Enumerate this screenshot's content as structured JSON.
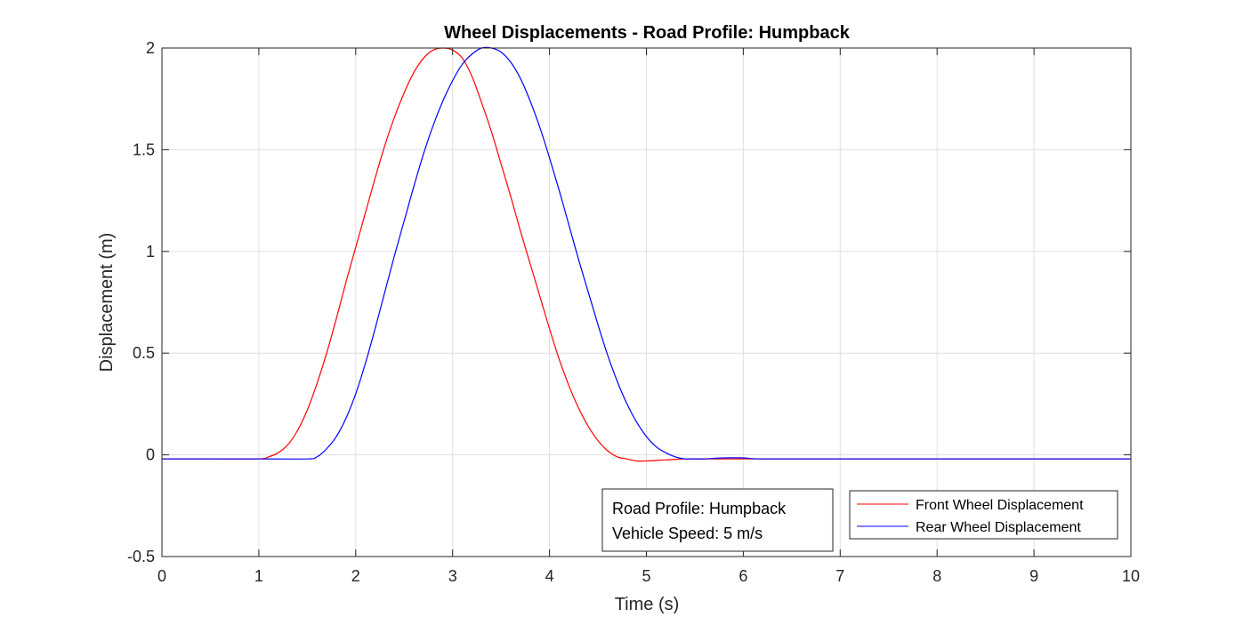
{
  "chart_data": {
    "type": "line",
    "title": "Wheel Displacements - Road Profile: Humpback",
    "xlabel": "Time (s)",
    "ylabel": "Displacement (m)",
    "xlim": [
      0,
      10
    ],
    "ylim": [
      -0.5,
      2
    ],
    "xticks": [
      0,
      1,
      2,
      3,
      4,
      5,
      6,
      7,
      8,
      9,
      10
    ],
    "xtick_labels": [
      "0",
      "1",
      "2",
      "3",
      "4",
      "5",
      "6",
      "7",
      "8",
      "9",
      "10"
    ],
    "yticks": [
      -0.5,
      0,
      0.5,
      1,
      1.5,
      2
    ],
    "ytick_labels": [
      "-0.5",
      "0",
      "0.5",
      "1",
      "1.5",
      "2"
    ],
    "grid": true,
    "legend_position": "bottom-right",
    "annotation": [
      "Road Profile: Humpback",
      "Vehicle Speed: 5 m/s"
    ],
    "series": [
      {
        "name": "Front Wheel Displacement",
        "color": "#ff0000",
        "x": [
          0,
          0.5,
          1.0,
          1.1,
          1.2,
          1.3,
          1.4,
          1.5,
          1.6,
          1.7,
          1.8,
          1.9,
          2.0,
          2.1,
          2.2,
          2.3,
          2.4,
          2.5,
          2.6,
          2.7,
          2.8,
          2.9,
          3.0,
          3.1,
          3.2,
          3.3,
          3.4,
          3.5,
          3.6,
          3.7,
          3.8,
          3.9,
          4.0,
          4.1,
          4.2,
          4.3,
          4.4,
          4.5,
          4.6,
          4.7,
          4.8,
          4.9,
          5.0,
          5.2,
          5.4,
          5.6,
          5.8,
          6.0,
          7.0,
          8.0,
          9.0,
          10.0
        ],
        "y": [
          -0.02,
          -0.02,
          -0.02,
          -0.01,
          0.01,
          0.05,
          0.12,
          0.22,
          0.35,
          0.5,
          0.67,
          0.85,
          1.02,
          1.19,
          1.36,
          1.52,
          1.66,
          1.78,
          1.88,
          1.95,
          1.99,
          2.0,
          1.99,
          1.95,
          1.86,
          1.73,
          1.59,
          1.43,
          1.27,
          1.1,
          0.94,
          0.78,
          0.62,
          0.47,
          0.34,
          0.23,
          0.14,
          0.07,
          0.02,
          -0.01,
          -0.02,
          -0.03,
          -0.03,
          -0.025,
          -0.02,
          -0.02,
          -0.02,
          -0.02,
          -0.02,
          -0.02,
          -0.02,
          -0.02
        ]
      },
      {
        "name": "Rear Wheel Displacement",
        "color": "#0000ff",
        "x": [
          0,
          0.5,
          1.0,
          1.5,
          1.6,
          1.7,
          1.8,
          1.9,
          2.0,
          2.1,
          2.2,
          2.3,
          2.4,
          2.5,
          2.6,
          2.7,
          2.8,
          2.9,
          3.0,
          3.1,
          3.2,
          3.3,
          3.4,
          3.5,
          3.6,
          3.7,
          3.8,
          3.9,
          4.0,
          4.1,
          4.2,
          4.3,
          4.4,
          4.5,
          4.6,
          4.7,
          4.8,
          4.9,
          5.0,
          5.1,
          5.2,
          5.3,
          5.4,
          5.5,
          5.6,
          5.8,
          6.0,
          6.2,
          7.0,
          8.0,
          9.0,
          10.0
        ],
        "y": [
          -0.02,
          -0.02,
          -0.02,
          -0.02,
          -0.01,
          0.03,
          0.09,
          0.18,
          0.3,
          0.45,
          0.62,
          0.8,
          0.98,
          1.15,
          1.32,
          1.48,
          1.62,
          1.74,
          1.84,
          1.92,
          1.97,
          2.0,
          2.0,
          1.98,
          1.93,
          1.85,
          1.74,
          1.61,
          1.46,
          1.3,
          1.13,
          0.96,
          0.8,
          0.64,
          0.49,
          0.36,
          0.25,
          0.16,
          0.09,
          0.04,
          0.01,
          -0.01,
          -0.02,
          -0.02,
          -0.02,
          -0.015,
          -0.015,
          -0.02,
          -0.02,
          -0.02,
          -0.02,
          -0.02
        ]
      }
    ]
  }
}
